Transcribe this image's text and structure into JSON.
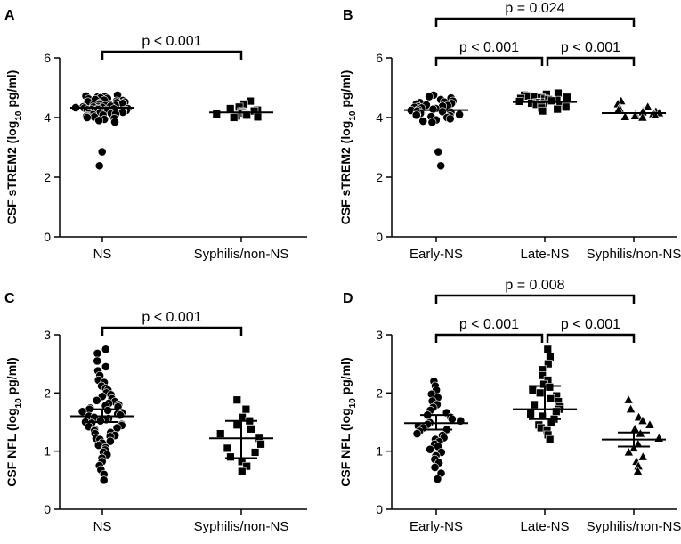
{
  "chart_data": [
    {
      "panel": "A",
      "type": "scatter",
      "ylabel": "CSF sTREM2 (log10 pg/ml)",
      "ylabel_main": "CSF sTREM2 (log",
      "ylabel_sub": "10",
      "ylabel_tail": " pg/ml)",
      "ylim": [
        0,
        6
      ],
      "yticks": [
        "0",
        "2",
        "4",
        "6"
      ],
      "categories": [
        "NS",
        "Syphilis/non-NS"
      ],
      "series": [
        {
          "name": "NS",
          "marker": "circle",
          "mean": 4.33,
          "values": [
            4.75,
            4.72,
            4.7,
            4.68,
            4.66,
            4.64,
            4.62,
            4.6,
            4.58,
            4.57,
            4.55,
            4.53,
            4.52,
            4.5,
            4.48,
            4.47,
            4.45,
            4.44,
            4.42,
            4.41,
            4.4,
            4.38,
            4.37,
            4.36,
            4.35,
            4.34,
            4.33,
            4.32,
            4.31,
            4.3,
            4.29,
            4.28,
            4.27,
            4.26,
            4.25,
            4.24,
            4.23,
            4.22,
            4.21,
            4.2,
            4.18,
            4.17,
            4.15,
            4.14,
            4.12,
            4.1,
            4.08,
            4.06,
            4.04,
            4.02,
            4.0,
            3.97,
            3.94,
            3.9,
            3.85,
            2.85,
            2.38
          ]
        },
        {
          "name": "Syphilis/non-NS",
          "marker": "square",
          "mean": 4.17,
          "values": [
            4.55,
            4.45,
            4.35,
            4.3,
            4.25,
            4.22,
            4.2,
            4.18,
            4.15,
            4.12,
            4.1,
            4.08,
            4.05,
            4.02,
            4.0
          ]
        }
      ],
      "comparisons": [
        {
          "from": 0,
          "to": 1,
          "label": "p < 0.001"
        }
      ]
    },
    {
      "panel": "B",
      "type": "scatter",
      "ylabel": "CSF sTREM2 (log10 pg/ml)",
      "ylabel_main": "CSF sTREM2 (log",
      "ylabel_sub": "10",
      "ylabel_tail": " pg/ml)",
      "ylim": [
        0,
        6
      ],
      "yticks": [
        "0",
        "2",
        "4",
        "6"
      ],
      "categories": [
        "Early-NS",
        "Late-NS",
        "Syphilis/non-NS"
      ],
      "series": [
        {
          "name": "Early-NS",
          "marker": "circle",
          "mean": 4.25,
          "values": [
            4.75,
            4.7,
            4.65,
            4.6,
            4.55,
            4.52,
            4.5,
            4.47,
            4.45,
            4.42,
            4.4,
            4.38,
            4.36,
            4.34,
            4.32,
            4.3,
            4.28,
            4.26,
            4.24,
            4.22,
            4.2,
            4.18,
            4.16,
            4.14,
            4.12,
            4.1,
            4.08,
            4.06,
            4.03,
            4.0,
            3.96,
            3.92,
            3.88,
            3.84,
            2.85,
            2.38
          ]
        },
        {
          "name": "Late-NS",
          "marker": "square",
          "mean": 4.52,
          "values": [
            4.82,
            4.78,
            4.75,
            4.72,
            4.7,
            4.68,
            4.66,
            4.64,
            4.62,
            4.6,
            4.58,
            4.56,
            4.54,
            4.52,
            4.5,
            4.48,
            4.46,
            4.44,
            4.42,
            4.4,
            4.38,
            4.35,
            4.32,
            4.28,
            4.22
          ]
        },
        {
          "name": "Syphilis/non-NS",
          "marker": "triangle",
          "mean": 4.15,
          "values": [
            4.55,
            4.45,
            4.35,
            4.3,
            4.25,
            4.22,
            4.2,
            4.18,
            4.15,
            4.12,
            4.1,
            4.08,
            4.05,
            4.02,
            4.0
          ]
        }
      ],
      "comparisons": [
        {
          "from": 0,
          "to": 2,
          "label": "p = 0.024",
          "level": 2
        },
        {
          "from": 0,
          "to": 1,
          "label": "p < 0.001",
          "level": 1
        },
        {
          "from": 1,
          "to": 2,
          "label": "p < 0.001",
          "level": 1
        }
      ]
    },
    {
      "panel": "C",
      "type": "scatter",
      "ylabel": "CSF NFL (log10 pg/ml)",
      "ylabel_main": "CSF NFL (log",
      "ylabel_sub": "10",
      "ylabel_tail": " pg/ml)",
      "ylim": [
        0,
        3
      ],
      "yticks": [
        "0",
        "1",
        "2",
        "3"
      ],
      "categories": [
        "NS",
        "Syphilis/non-NS"
      ],
      "series": [
        {
          "name": "NS",
          "marker": "circle",
          "mean": 1.6,
          "sd_low": 1.5,
          "sd_high": 1.72,
          "values": [
            2.75,
            2.68,
            2.55,
            2.45,
            2.38,
            2.3,
            2.22,
            2.18,
            2.12,
            2.08,
            2.05,
            2.0,
            1.97,
            1.94,
            1.9,
            1.87,
            1.85,
            1.82,
            1.8,
            1.78,
            1.76,
            1.74,
            1.72,
            1.7,
            1.68,
            1.66,
            1.64,
            1.62,
            1.6,
            1.58,
            1.56,
            1.54,
            1.52,
            1.5,
            1.48,
            1.46,
            1.44,
            1.42,
            1.4,
            1.37,
            1.35,
            1.32,
            1.3,
            1.27,
            1.25,
            1.22,
            1.2,
            1.17,
            1.14,
            1.1,
            1.06,
            1.02,
            0.98,
            0.94,
            0.88,
            0.82,
            0.75,
            0.68,
            0.6,
            0.5
          ]
        },
        {
          "name": "Syphilis/non-NS",
          "marker": "square",
          "mean": 1.22,
          "sd_low": 0.88,
          "sd_high": 1.52,
          "values": [
            1.88,
            1.72,
            1.58,
            1.52,
            1.45,
            1.38,
            1.3,
            1.22,
            1.12,
            1.05,
            0.98,
            0.9,
            0.82,
            0.74,
            0.65
          ]
        }
      ],
      "comparisons": [
        {
          "from": 0,
          "to": 1,
          "label": "p < 0.001"
        }
      ]
    },
    {
      "panel": "D",
      "type": "scatter",
      "ylabel": "CSF NFL (log10 pg/ml)",
      "ylabel_main": "CSF NFL (log",
      "ylabel_sub": "10",
      "ylabel_tail": " pg/ml)",
      "ylim": [
        0,
        3
      ],
      "yticks": [
        "0",
        "1",
        "2",
        "3"
      ],
      "categories": [
        "Early-NS",
        "Late-NS",
        "Syphilis/non-NS"
      ],
      "series": [
        {
          "name": "Early-NS",
          "marker": "circle",
          "mean": 1.48,
          "sd_low": 1.37,
          "sd_high": 1.62,
          "values": [
            2.2,
            2.12,
            2.05,
            1.98,
            1.92,
            1.86,
            1.8,
            1.75,
            1.7,
            1.66,
            1.62,
            1.58,
            1.55,
            1.52,
            1.49,
            1.46,
            1.43,
            1.4,
            1.37,
            1.34,
            1.3,
            1.27,
            1.23,
            1.2,
            1.16,
            1.12,
            1.08,
            1.03,
            0.98,
            0.92,
            0.86,
            0.8,
            0.72,
            0.62,
            0.52
          ]
        },
        {
          "name": "Late-NS",
          "marker": "square",
          "mean": 1.72,
          "sd_low": 1.55,
          "sd_high": 2.12,
          "values": [
            2.75,
            2.62,
            2.5,
            2.4,
            2.3,
            2.22,
            2.15,
            2.1,
            2.05,
            2.0,
            1.95,
            1.9,
            1.85,
            1.8,
            1.76,
            1.72,
            1.68,
            1.64,
            1.6,
            1.55,
            1.5,
            1.45,
            1.4,
            1.35,
            1.28,
            1.2
          ]
        },
        {
          "name": "Syphilis/non-NS",
          "marker": "triangle",
          "mean": 1.2,
          "sd_low": 1.08,
          "sd_high": 1.32,
          "values": [
            1.88,
            1.72,
            1.58,
            1.52,
            1.45,
            1.38,
            1.3,
            1.22,
            1.12,
            1.05,
            0.98,
            0.9,
            0.82,
            0.74,
            0.65
          ]
        }
      ],
      "comparisons": [
        {
          "from": 0,
          "to": 2,
          "label": "p = 0.008",
          "level": 2
        },
        {
          "from": 0,
          "to": 1,
          "label": "p < 0.001",
          "level": 1
        },
        {
          "from": 1,
          "to": 2,
          "label": "p < 0.001",
          "level": 1
        }
      ]
    }
  ]
}
